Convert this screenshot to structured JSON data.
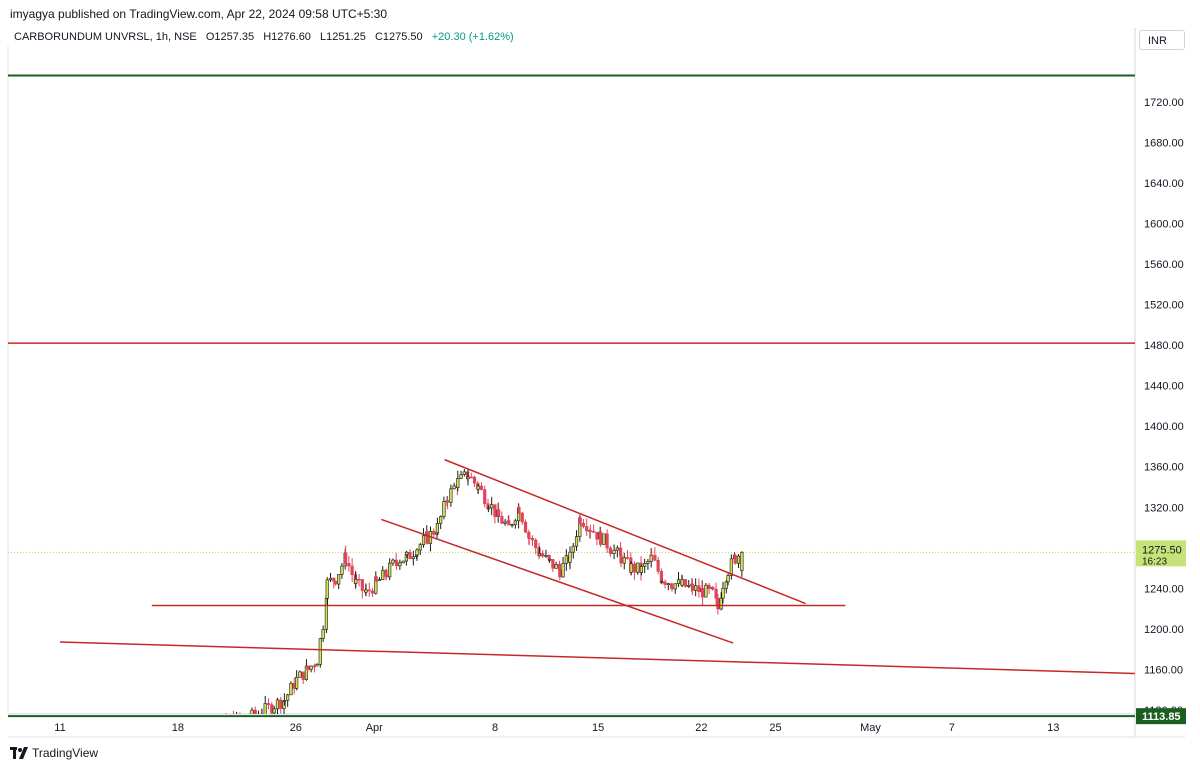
{
  "header": {
    "published": "imyagya published on TradingView.com, Apr 22, 2024 09:58 UTC+5:30"
  },
  "legend": {
    "symbol": "CARBORUNDUM UNVRSL, 1h, NSE",
    "open": "O1257.35",
    "high": "H1276.60",
    "low": "L1251.25",
    "close": "C1275.50",
    "change": "+20.30 (+1.62%)"
  },
  "currency": "INR",
  "footer": {
    "brand": "TradingView"
  },
  "colors": {
    "up": "#1a1a1a",
    "upFill": "#d4e157",
    "down": "#e0455a",
    "trendline": "#c62828",
    "green_line": "#1b5e20",
    "price_badge": "#c6e377",
    "support_badge": "#1b5e20"
  },
  "chart_data": {
    "type": "candlestick",
    "interval": "1h",
    "ylim": [
      1100,
      1750
    ],
    "y_ticks": [
      "1720.00",
      "1680.00",
      "1640.00",
      "1600.00",
      "1560.00",
      "1520.00",
      "1480.00",
      "1440.00",
      "1400.00",
      "1360.00",
      "1320.00",
      "1280.00",
      "1240.00",
      "1200.00",
      "1160.00",
      "1120.00"
    ],
    "x_ticks": [
      {
        "label": "11",
        "pos": 0.0
      },
      {
        "label": "18",
        "pos": 0.1156
      },
      {
        "label": "26",
        "pos": 0.2312
      },
      {
        "label": "Apr",
        "pos": 0.3081
      },
      {
        "label": "8",
        "pos": 0.4265
      },
      {
        "label": "15",
        "pos": 0.5276
      },
      {
        "label": "22",
        "pos": 0.6288
      },
      {
        "label": "25",
        "pos": 0.7015
      },
      {
        "label": "May",
        "pos": 0.7946
      },
      {
        "label": "7",
        "pos": 0.8743
      },
      {
        "label": "13",
        "pos": 0.9738
      }
    ],
    "last_price": {
      "value": 1275.5,
      "label": "1275.50",
      "countdown": "16:23"
    },
    "support_label": {
      "value": 1113.85,
      "label": "1113.85"
    },
    "horizontal_lines": [
      {
        "name": "top-green",
        "value": 1746,
        "color": "green"
      },
      {
        "name": "resistance-1482",
        "value": 1482,
        "color": "red"
      },
      {
        "name": "support-1223",
        "value": 1223,
        "color": "red",
        "from": 0.09,
        "to": 0.77
      },
      {
        "name": "bottom-green",
        "value": 1113.85,
        "color": "green"
      }
    ],
    "trend_lines": [
      {
        "name": "channel-upper",
        "x1": 0.377,
        "y1": 1367,
        "x2": 0.731,
        "y2": 1225
      },
      {
        "name": "channel-lower",
        "x1": 0.315,
        "y1": 1308,
        "x2": 0.66,
        "y2": 1186
      },
      {
        "name": "long-descending",
        "x1": 0.0,
        "y1": 1187,
        "x2": 1.0,
        "y2": 1156
      }
    ],
    "anchors": [
      [
        0.13,
        1100
      ],
      [
        0.15,
        1103
      ],
      [
        0.17,
        1108
      ],
      [
        0.185,
        1112
      ],
      [
        0.198,
        1118
      ],
      [
        0.21,
        1125
      ],
      [
        0.22,
        1130
      ],
      [
        0.232,
        1150
      ],
      [
        0.243,
        1160
      ],
      [
        0.252,
        1170
      ],
      [
        0.258,
        1205
      ],
      [
        0.262,
        1245
      ],
      [
        0.27,
        1250
      ],
      [
        0.28,
        1270
      ],
      [
        0.29,
        1245
      ],
      [
        0.3,
        1235
      ],
      [
        0.31,
        1245
      ],
      [
        0.32,
        1255
      ],
      [
        0.33,
        1268
      ],
      [
        0.34,
        1270
      ],
      [
        0.35,
        1280
      ],
      [
        0.36,
        1290
      ],
      [
        0.37,
        1300
      ],
      [
        0.38,
        1330
      ],
      [
        0.39,
        1345
      ],
      [
        0.4,
        1352
      ],
      [
        0.41,
        1340
      ],
      [
        0.42,
        1325
      ],
      [
        0.43,
        1310
      ],
      [
        0.44,
        1300
      ],
      [
        0.45,
        1320
      ],
      [
        0.46,
        1290
      ],
      [
        0.47,
        1275
      ],
      [
        0.48,
        1265
      ],
      [
        0.49,
        1258
      ],
      [
        0.5,
        1270
      ],
      [
        0.51,
        1310
      ],
      [
        0.52,
        1300
      ],
      [
        0.53,
        1290
      ],
      [
        0.54,
        1280
      ],
      [
        0.55,
        1270
      ],
      [
        0.56,
        1260
      ],
      [
        0.57,
        1258
      ],
      [
        0.58,
        1270
      ],
      [
        0.59,
        1250
      ],
      [
        0.6,
        1245
      ],
      [
        0.61,
        1243
      ],
      [
        0.62,
        1240
      ],
      [
        0.63,
        1237
      ],
      [
        0.64,
        1235
      ],
      [
        0.645,
        1220
      ],
      [
        0.65,
        1245
      ],
      [
        0.655,
        1258
      ],
      [
        0.662,
        1270
      ],
      [
        0.668,
        1276
      ]
    ]
  }
}
